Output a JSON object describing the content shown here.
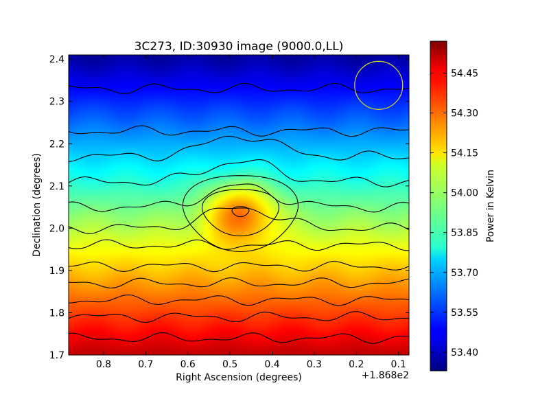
{
  "chart_data": {
    "type": "heatmap",
    "title": "3C273, ID:30930 image (9000.0,LL)",
    "xlabel": "Right Ascension (degrees)",
    "ylabel": "Declination (degrees)",
    "x_offset_label": "+1.868e2",
    "xlim": [
      0.883,
      0.075
    ],
    "ylim": [
      1.7,
      2.41
    ],
    "x_ticks": [
      0.8,
      0.7,
      0.6,
      0.5,
      0.4,
      0.3,
      0.2,
      0.1
    ],
    "x_tick_labels": [
      "0.8",
      "0.7",
      "0.6",
      "0.5",
      "0.4",
      "0.3",
      "0.2",
      "0.1"
    ],
    "y_ticks": [
      1.7,
      1.8,
      1.9,
      2.0,
      2.1,
      2.2,
      2.3,
      2.4
    ],
    "y_tick_labels": [
      "1.7",
      "1.8",
      "1.9",
      "2.0",
      "2.1",
      "2.2",
      "2.3",
      "2.4"
    ],
    "colorbar": {
      "label": "Power in Kelvin",
      "range": [
        53.33,
        54.57
      ],
      "ticks": [
        53.4,
        53.55,
        53.7,
        53.85,
        54.0,
        54.15,
        54.3,
        54.45
      ],
      "tick_labels": [
        "53.40",
        "53.55",
        "53.70",
        "53.85",
        "54.00",
        "54.15",
        "54.30",
        "54.45"
      ],
      "colormap": "jet"
    },
    "field": {
      "base_top": 53.36,
      "gradient_per_degree": -1.6,
      "source_ra": 0.475,
      "source_dec": 2.04,
      "source_peak_excess": 0.32
    },
    "contour_lines_dec": [
      1.74,
      1.79,
      1.83,
      1.87,
      1.91,
      1.96,
      2.0,
      2.05,
      2.11,
      2.17,
      2.23,
      2.33
    ],
    "source_contours": [
      {
        "ra": 0.475,
        "dec": 2.04,
        "ra_halfwidth": 0.135,
        "dec_halfwidth": 0.09
      },
      {
        "ra": 0.475,
        "dec": 2.04,
        "ra_halfwidth": 0.09,
        "dec_halfwidth": 0.055
      },
      {
        "ra": 0.475,
        "dec": 2.04,
        "ra_halfwidth": 0.02,
        "dec_halfwidth": 0.012
      }
    ],
    "beam_marker": {
      "ra": 0.147,
      "dec": 2.338,
      "radius_deg": 0.057,
      "color": "#cccc33"
    }
  }
}
